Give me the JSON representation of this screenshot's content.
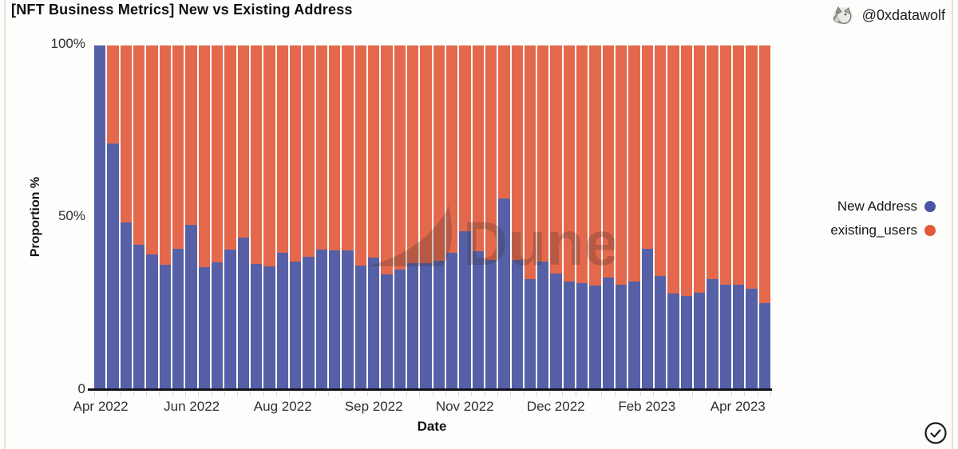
{
  "header": {
    "title": "[NFT Business Metrics] New vs Existing Address",
    "author_handle": "@0xdatawolf"
  },
  "icons": {
    "author_avatar": "wolf-sketch-avatar",
    "bottom_right": "circled-checkmark"
  },
  "watermark": {
    "text": "Dune"
  },
  "chart_data": {
    "type": "bar",
    "stacked": true,
    "title": "[NFT Business Metrics] New vs Existing Address",
    "xlabel": "Date",
    "ylabel": "Proportion %",
    "bar_count": 52,
    "x_axis": {
      "label": "Date",
      "tick_labels": [
        "Apr 2022",
        "Jun 2022",
        "Aug 2022",
        "Sep 2022",
        "Nov 2022",
        "Dec 2022",
        "Feb 2023",
        "Apr 2023"
      ],
      "tick_bar_positions": [
        0,
        7,
        14,
        21,
        28,
        35,
        42,
        49
      ]
    },
    "y_axis": {
      "label": "Proportion %",
      "ticks": [
        "100%",
        "50%",
        "0"
      ],
      "range": [
        0,
        100
      ],
      "unit": "%"
    },
    "legend_position": "right",
    "series": [
      {
        "name": "New Address",
        "color": "#5560a7",
        "dot_color": "#4a55a4",
        "values": [
          100,
          71.5,
          48.5,
          42,
          39.2,
          36.3,
          40.8,
          47.8,
          35.5,
          37,
          40.6,
          44,
          36.4,
          35.7,
          39.7,
          37.1,
          38.5,
          40.6,
          40.4,
          40.4,
          36,
          38.3,
          33.4,
          34.8,
          36.7,
          36.7,
          37.4,
          39.7,
          45.9,
          40.1,
          37.6,
          55.5,
          37.6,
          32,
          37.1,
          33.6,
          31.4,
          30.9,
          30.2,
          32.5,
          30.5,
          31.3,
          40.9,
          33,
          27.8,
          27.1,
          28.1,
          32,
          30.3,
          30.3,
          29.3,
          25.1
        ]
      },
      {
        "name": "existing_users",
        "color": "#e4694c",
        "dot_color": "#e2593a",
        "values": [
          0,
          28.5,
          51.5,
          58,
          60.8,
          63.7,
          59.2,
          52.2,
          64.5,
          63,
          59.4,
          56,
          63.6,
          64.3,
          60.3,
          62.9,
          61.5,
          59.4,
          59.6,
          59.6,
          64,
          61.7,
          66.6,
          65.2,
          63.3,
          63.3,
          62.6,
          60.3,
          54.1,
          59.9,
          62.4,
          44.5,
          62.4,
          68,
          62.9,
          66.4,
          68.6,
          69.1,
          69.8,
          67.5,
          69.5,
          68.7,
          59.1,
          67,
          72.2,
          72.9,
          71.9,
          68,
          69.7,
          69.7,
          70.7,
          74.9
        ]
      }
    ]
  }
}
